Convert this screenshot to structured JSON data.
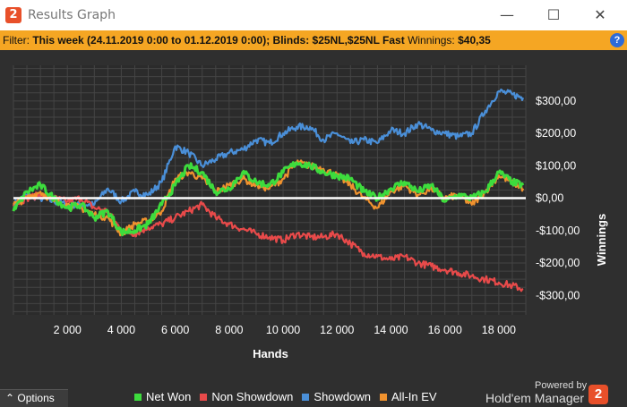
{
  "window": {
    "title": "Results Graph",
    "logo_glyph": "2",
    "minimize_glyph": "—",
    "maximize_glyph": "☐",
    "close_glyph": "✕"
  },
  "filter": {
    "prefix": "Filter: ",
    "period_label": "This week",
    "period_range": "(24.11.2019 0:00 to 01.12.2019 0:00);",
    "blinds_label": "Blinds:",
    "blinds_value": "$25NL,$25NL Fast",
    "winnings_label": "Winnings:",
    "winnings_value": "$40,35",
    "help_glyph": "?"
  },
  "options": {
    "label": "Options",
    "icon": "caret-up-icon",
    "glyph": "⌃"
  },
  "branding": {
    "powered_by": "Powered by",
    "product": "Hold'em Manager",
    "logo_glyph": "2"
  },
  "chart_data": {
    "type": "line",
    "xlabel": "Hands",
    "ylabel": "Winnings",
    "xlim": [
      0,
      19000
    ],
    "ylim": [
      -360,
      410
    ],
    "x_ticks": [
      2000,
      4000,
      6000,
      8000,
      10000,
      12000,
      14000,
      16000,
      18000
    ],
    "x_tick_labels": [
      "2 000",
      "4 000",
      "6 000",
      "8 000",
      "10 000",
      "12 000",
      "14 000",
      "16 000",
      "18 000"
    ],
    "y_ticks": [
      300,
      200,
      100,
      0,
      -100,
      -200,
      -300
    ],
    "y_tick_labels": [
      "$300,00",
      "$200,00",
      "$100,00",
      "$0,00",
      "-$100,00",
      "-$200,00",
      "-$300,00"
    ],
    "grid": true,
    "zero_line": true,
    "legend_position": "bottom",
    "colors": {
      "background": "#2f2f2f",
      "plot": "#2b2b2b",
      "grid": "#444444",
      "zero": "#ffffff"
    },
    "series": [
      {
        "name": "Net Won",
        "color": "#3ddc3d",
        "x": [
          0,
          500,
          1000,
          1500,
          2000,
          2500,
          3000,
          3500,
          4000,
          4500,
          5000,
          5500,
          6000,
          6500,
          7000,
          7500,
          8000,
          8500,
          9000,
          9500,
          10000,
          10500,
          11000,
          11500,
          12000,
          12500,
          13000,
          13500,
          14000,
          14500,
          15000,
          15500,
          16000,
          16500,
          17000,
          17500,
          18000,
          18500,
          18900
        ],
        "y": [
          -40,
          20,
          40,
          0,
          -30,
          -20,
          -60,
          -40,
          -105,
          -100,
          -80,
          -20,
          40,
          100,
          80,
          20,
          30,
          80,
          50,
          40,
          80,
          110,
          100,
          80,
          70,
          60,
          20,
          0,
          30,
          50,
          20,
          40,
          -10,
          10,
          0,
          20,
          80,
          50,
          40
        ]
      },
      {
        "name": "Non Showdown",
        "color": "#e84a4a",
        "x": [
          0,
          500,
          1000,
          1500,
          2000,
          2500,
          3000,
          3500,
          4000,
          4500,
          5000,
          5500,
          6000,
          6500,
          7000,
          7500,
          8000,
          8500,
          9000,
          9500,
          10000,
          10500,
          11000,
          11500,
          12000,
          12500,
          13000,
          13500,
          14000,
          14500,
          15000,
          15500,
          16000,
          16500,
          17000,
          17500,
          18000,
          18500,
          18900
        ],
        "y": [
          -20,
          0,
          10,
          0,
          -10,
          0,
          -30,
          -40,
          -100,
          -110,
          -90,
          -80,
          -60,
          -40,
          -20,
          -60,
          -80,
          -95,
          -110,
          -120,
          -130,
          -110,
          -120,
          -120,
          -110,
          -140,
          -170,
          -180,
          -190,
          -180,
          -200,
          -210,
          -220,
          -230,
          -240,
          -250,
          -260,
          -270,
          -280
        ]
      },
      {
        "name": "Showdown",
        "color": "#4a8fd8",
        "x": [
          0,
          500,
          1000,
          1500,
          2000,
          2500,
          3000,
          3500,
          4000,
          4500,
          5000,
          5500,
          6000,
          6500,
          7000,
          7500,
          8000,
          8500,
          9000,
          9500,
          10000,
          10500,
          11000,
          11500,
          12000,
          12500,
          13000,
          13500,
          14000,
          14500,
          15000,
          15500,
          16000,
          16500,
          17000,
          17500,
          18000,
          18500,
          18900
        ],
        "y": [
          -20,
          10,
          0,
          -10,
          -20,
          -20,
          -20,
          30,
          -10,
          20,
          10,
          50,
          160,
          140,
          100,
          120,
          140,
          150,
          180,
          170,
          200,
          220,
          220,
          180,
          200,
          170,
          180,
          170,
          210,
          200,
          230,
          210,
          200,
          190,
          200,
          270,
          330,
          320,
          310
        ]
      },
      {
        "name": "All-In EV",
        "color": "#f0922e",
        "x": [
          0,
          500,
          1000,
          1500,
          2000,
          2500,
          3000,
          3500,
          4000,
          4500,
          5000,
          5500,
          6000,
          6500,
          7000,
          7500,
          8000,
          8500,
          9000,
          9500,
          10000,
          10500,
          11000,
          11500,
          12000,
          12500,
          13000,
          13500,
          14000,
          14500,
          15000,
          15500,
          16000,
          16500,
          17000,
          17500,
          18000,
          18500,
          18900
        ],
        "y": [
          -20,
          0,
          20,
          -10,
          -20,
          -30,
          -50,
          -60,
          -110,
          -80,
          -70,
          -40,
          60,
          80,
          60,
          20,
          40,
          60,
          40,
          30,
          60,
          110,
          100,
          90,
          70,
          40,
          0,
          -30,
          20,
          40,
          10,
          30,
          0,
          10,
          -20,
          20,
          70,
          50,
          30
        ]
      }
    ]
  }
}
